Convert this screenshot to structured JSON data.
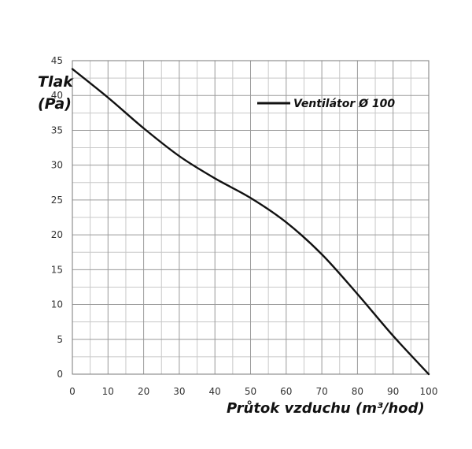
{
  "chart_data": {
    "type": "line",
    "xlabel": "Průtok vzduchu (m³/hod)",
    "ylabel_line1": "Tlak",
    "ylabel_line2": "(Pa)",
    "xlim": [
      0,
      100
    ],
    "ylim": [
      0,
      45
    ],
    "xticks": [
      0,
      10,
      20,
      30,
      40,
      50,
      60,
      70,
      80,
      90,
      100
    ],
    "yticks": [
      0,
      5,
      10,
      15,
      20,
      25,
      30,
      35,
      40,
      45
    ],
    "grid": true,
    "x_minor_grid_step": 5,
    "y_minor_grid_step": 2.5,
    "legend_position": "top-right",
    "series": [
      {
        "name": "Ventilátor Ø 100",
        "color": "#111111",
        "x": [
          0,
          10,
          20,
          30,
          40,
          50,
          60,
          70,
          80,
          90,
          100
        ],
        "y": [
          43.8,
          39.7,
          35.3,
          31.3,
          28.1,
          25.3,
          21.8,
          17.2,
          11.5,
          5.5,
          0
        ]
      }
    ]
  },
  "colors": {
    "grid_major": "#9a9a9a",
    "grid_minor": "#c8c8c8",
    "series": "#111111"
  }
}
